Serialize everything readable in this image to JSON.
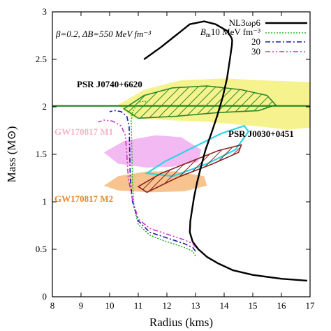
{
  "chart_data": {
    "type": "line",
    "xlabel": "Radius (kms)",
    "ylabel": "Mass (M⊙)",
    "xlim": [
      8,
      17
    ],
    "ylim": [
      0,
      3
    ],
    "xticks": [
      8,
      9,
      10,
      11,
      12,
      13,
      14,
      15,
      16,
      17
    ],
    "yticks": [
      0,
      0.5,
      1,
      1.5,
      2,
      2.5,
      3
    ],
    "ytick_labels": [
      "0",
      "0.5",
      "1",
      "1.5",
      "2",
      "2.5",
      "3"
    ],
    "grid": false,
    "legend_position": "top-right",
    "annotation_params": "β=0.2, ΔB=550 MeV fm⁻³",
    "legend_label_prefix": "B",
    "legend_label_subscript": "m",
    "series": [
      {
        "name": "NL3ωρ6",
        "color": "#000000",
        "style": "solid",
        "x": [
          16.9,
          16.0,
          15.0,
          14.3,
          13.8,
          13.4,
          13.1,
          12.9,
          12.8,
          12.82,
          12.88,
          12.95,
          13.05,
          13.2,
          13.35,
          13.55,
          13.75,
          13.95,
          14.1,
          14.2,
          14.27,
          14.28,
          14.25,
          14.1,
          13.7,
          13.3,
          12.8,
          12.3,
          11.8,
          11.2
        ],
        "y": [
          0.17,
          0.19,
          0.23,
          0.28,
          0.35,
          0.42,
          0.5,
          0.58,
          0.68,
          0.8,
          0.92,
          1.05,
          1.2,
          1.38,
          1.55,
          1.72,
          1.9,
          2.1,
          2.3,
          2.5,
          2.65,
          2.7,
          2.73,
          2.8,
          2.87,
          2.9,
          2.87,
          2.75,
          2.63,
          2.5
        ]
      },
      {
        "name": "10 MeV fm⁻³",
        "color": "#2bb52b",
        "style": "dotted",
        "x": [
          13.0,
          12.9,
          12.6,
          12.2,
          11.8,
          11.4,
          11.0,
          10.85,
          10.8,
          10.78,
          10.75,
          10.8,
          10.9,
          11.0,
          11.2,
          11.3
        ],
        "y": [
          0.43,
          0.48,
          0.52,
          0.56,
          0.6,
          0.65,
          0.76,
          0.95,
          1.2,
          1.5,
          1.85,
          1.95,
          2.0,
          2.05,
          2.06,
          2.05
        ]
      },
      {
        "name": "20",
        "color": "#1a1aa8",
        "style": "dashdot",
        "x": [
          13.0,
          12.9,
          12.6,
          12.2,
          11.8,
          11.4,
          11.0,
          10.8,
          10.72,
          10.7,
          10.68,
          10.6,
          10.4,
          10.2,
          10.0
        ],
        "y": [
          0.48,
          0.52,
          0.56,
          0.6,
          0.64,
          0.68,
          0.8,
          1.0,
          1.25,
          1.55,
          1.8,
          1.9,
          1.95,
          1.96,
          1.95
        ]
      },
      {
        "name": "30",
        "color": "#cc33cc",
        "style": "dashdotdot",
        "x": [
          13.0,
          12.9,
          12.6,
          12.2,
          11.8,
          11.4,
          11.0,
          10.8,
          10.65,
          10.6,
          10.55,
          10.4,
          10.1,
          9.8,
          9.6
        ],
        "y": [
          0.52,
          0.56,
          0.6,
          0.64,
          0.68,
          0.72,
          0.82,
          1.02,
          1.25,
          1.5,
          1.7,
          1.8,
          1.85,
          1.86,
          1.84
        ]
      }
    ],
    "horizontal_line": {
      "y": 2.01,
      "color": "#1e8a1e"
    },
    "regions": [
      {
        "name": "GW170817 M1",
        "color": "#f0a8f0",
        "label_color": "#f4b6c4",
        "x": [
          9.8,
          10.5,
          11.6,
          12.5,
          13.2,
          13.1,
          12.2,
          11.3,
          10.3,
          9.8
        ],
        "y": [
          1.52,
          1.64,
          1.7,
          1.68,
          1.55,
          1.42,
          1.37,
          1.36,
          1.4,
          1.52
        ]
      },
      {
        "name": "GW170817 M2",
        "color": "#f6b87a",
        "label_color": "#e58a2a",
        "x": [
          9.8,
          10.3,
          11.3,
          12.3,
          13.3,
          13.4,
          12.6,
          11.4,
          10.3,
          9.8
        ],
        "y": [
          1.17,
          1.27,
          1.32,
          1.32,
          1.27,
          1.17,
          1.11,
          1.1,
          1.12,
          1.17
        ]
      },
      {
        "name": "PSR J0740+6620",
        "color": "#f5f07a",
        "label_color": "#000000",
        "x": [
          10.3,
          11.2,
          12.5,
          14.0,
          15.2,
          16.2,
          17.0,
          17.0,
          16.2,
          15.0,
          13.5,
          12.0,
          10.8,
          10.3
        ],
        "y": [
          2.02,
          2.18,
          2.28,
          2.3,
          2.28,
          2.27,
          2.26,
          1.78,
          1.76,
          1.8,
          1.84,
          1.86,
          1.88,
          2.02
        ]
      },
      {
        "name": "PSR J0740+6620 contour",
        "color": "#2a8a2a",
        "x": [
          10.5,
          11.2,
          12.2,
          13.4,
          14.6,
          15.5,
          15.8,
          15.2,
          13.8,
          12.3,
          11.0,
          10.5
        ],
        "y": [
          1.98,
          2.12,
          2.2,
          2.22,
          2.18,
          2.12,
          2.02,
          1.96,
          1.94,
          1.9,
          1.88,
          1.98
        ]
      },
      {
        "name": "PSR J0030+0451",
        "color": "#2ad6e8",
        "label_color": "#000000",
        "x": [
          11.3,
          11.9,
          12.9,
          13.9,
          14.7,
          14.85,
          14.4,
          13.4,
          12.2,
          11.3
        ],
        "y": [
          1.3,
          1.42,
          1.57,
          1.72,
          1.8,
          1.74,
          1.55,
          1.4,
          1.27,
          1.3
        ]
      },
      {
        "name": "PSR J0030+0451 contour",
        "color": "#8a2323",
        "x": [
          11.0,
          11.8,
          12.8,
          13.8,
          14.6,
          14.5,
          13.6,
          12.4,
          11.3,
          11.0
        ],
        "y": [
          1.16,
          1.3,
          1.42,
          1.54,
          1.6,
          1.52,
          1.4,
          1.26,
          1.1,
          1.16
        ]
      }
    ]
  }
}
